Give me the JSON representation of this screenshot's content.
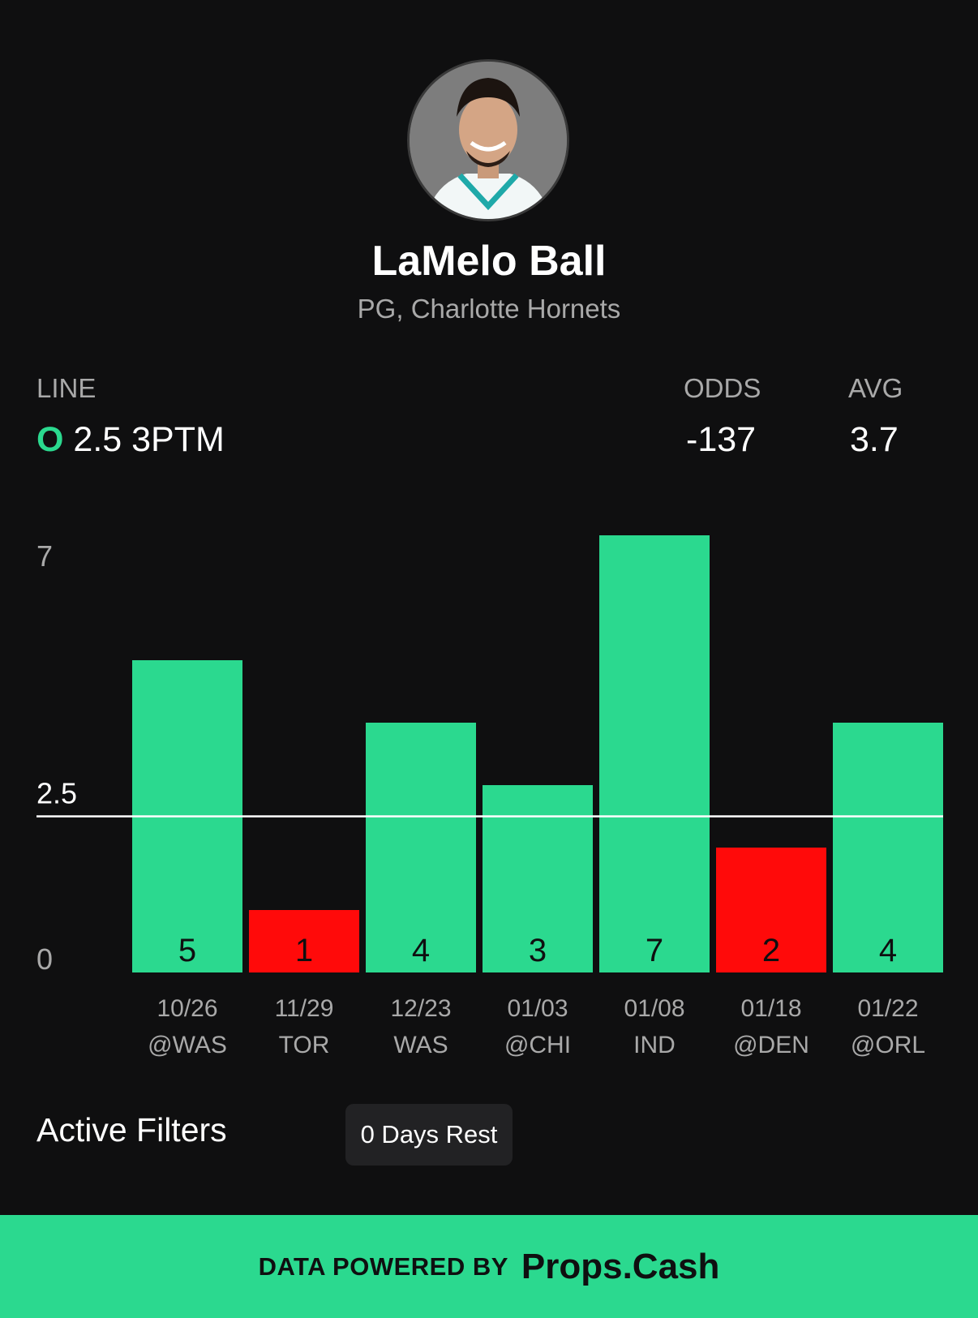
{
  "player": {
    "name": "LaMelo Ball",
    "subtitle": "PG, Charlotte Hornets"
  },
  "stats": {
    "line_label": "LINE",
    "line_side": "O",
    "line_value": "2.5 3PTM",
    "odds_label": "ODDS",
    "odds_value": "-137",
    "avg_label": "AVG",
    "avg_value": "3.7"
  },
  "chart_data": {
    "type": "bar",
    "categories": [
      "10/26 @WAS",
      "11/29 TOR",
      "12/23 WAS",
      "01/03 @CHI",
      "01/08 IND",
      "01/18 @DEN",
      "01/22 @ORL"
    ],
    "dates": [
      "10/26",
      "11/29",
      "12/23",
      "01/03",
      "01/08",
      "01/18",
      "01/22"
    ],
    "opponents": [
      "@WAS",
      "TOR",
      "WAS",
      "@CHI",
      "IND",
      "@DEN",
      "@ORL"
    ],
    "values": [
      5,
      1,
      4,
      3,
      7,
      2,
      4
    ],
    "value_labels": [
      "5",
      "1",
      "4",
      "3",
      "7",
      "2",
      "4"
    ],
    "line": 2.5,
    "line_label": "2.5",
    "ylim": [
      0,
      7
    ],
    "ytick_labels": [
      "0",
      "7"
    ],
    "colors": {
      "over": "#2bd98f",
      "under": "#ff0a0a",
      "line": "#ffffff"
    }
  },
  "filters": {
    "title": "Active Filters",
    "items": [
      "0 Days Rest"
    ]
  },
  "footer": {
    "prefix": "DATA POWERED BY",
    "brand": "Props.Cash"
  }
}
